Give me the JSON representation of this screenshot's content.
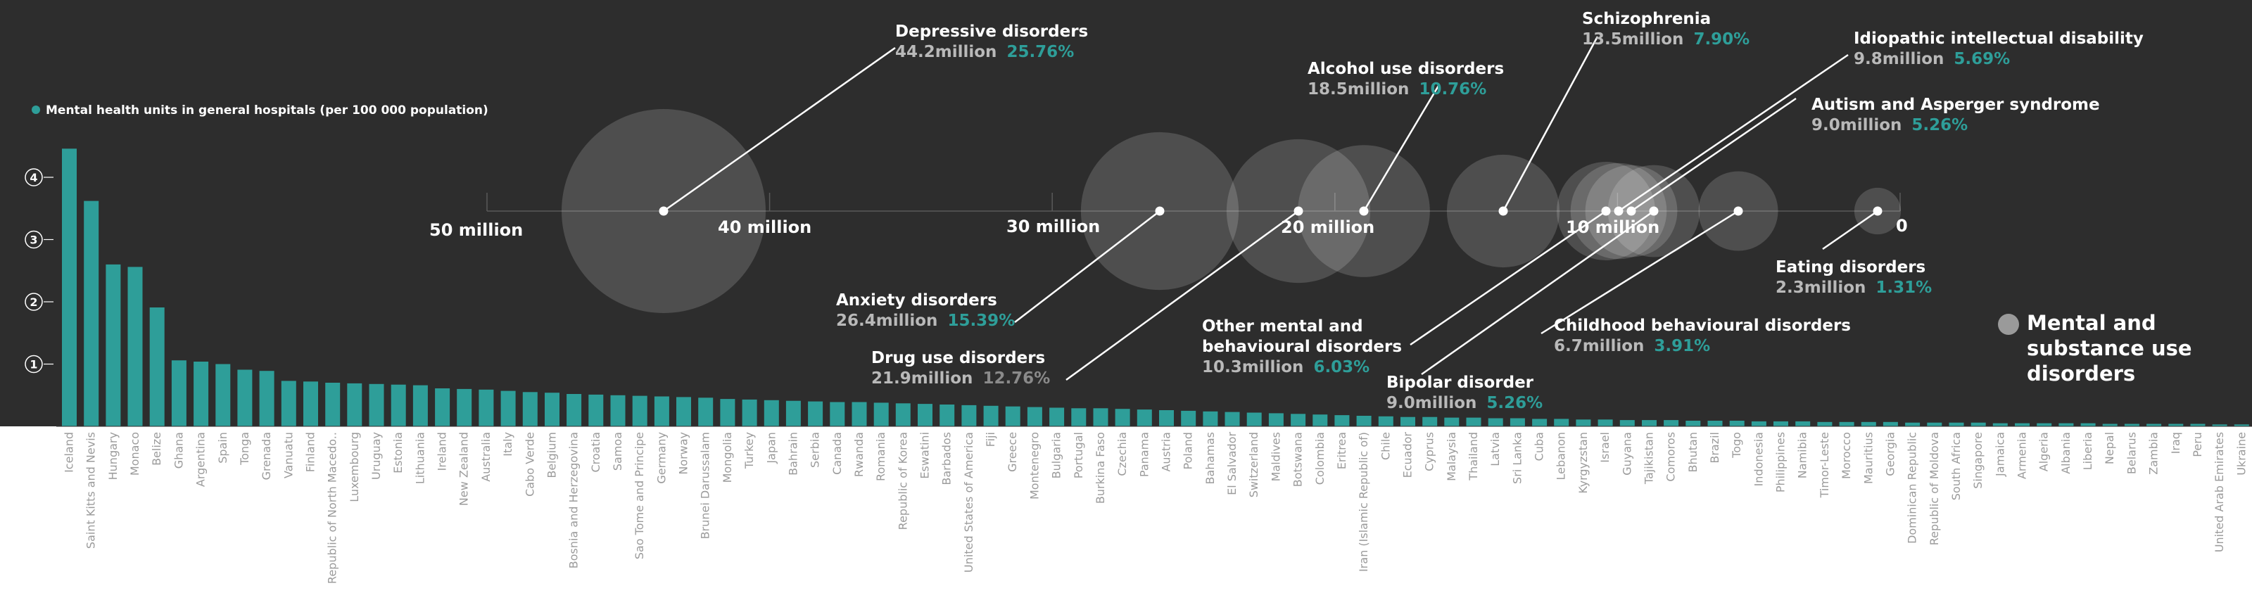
{
  "colors": {
    "panel": "#2d2d2d",
    "bar": "#2e9e99",
    "bubble": "#ffffff",
    "value_text": "#b9b9b9",
    "percent_text": "#2e9e99",
    "muted_percent_text": "#8a8a8a",
    "country_text": "#9b9b9b"
  },
  "chart_data": [
    {
      "type": "bar",
      "legend": "Mental health units in general hospitals (per 100 000 population)",
      "legend_marker": "teal-dot",
      "y_ticks": [
        "1",
        "2",
        "3",
        "4"
      ],
      "ylim": [
        0,
        4.6
      ],
      "grid": false,
      "categories": [
        "Iceland",
        "Saint Kitts and Nevis",
        "Hungary",
        "Monaco",
        "Belize",
        "Ghana",
        "Argentina",
        "Spain",
        "Tonga",
        "Grenada",
        "Vanuatu",
        "Finland",
        "Republic of North Macedo..",
        "Luxembourg",
        "Uruguay",
        "Estonia",
        "Lithuania",
        "Ireland",
        "New Zealand",
        "Australia",
        "Italy",
        "Cabo Verde",
        "Belgium",
        "Bosnia and Herzegovina",
        "Croatia",
        "Samoa",
        "Sao Tome and Principe",
        "Germany",
        "Norway",
        "Brunei Darussalam",
        "Mongolia",
        "Turkey",
        "Japan",
        "Bahrain",
        "Serbia",
        "Canada",
        "Rwanda",
        "Romania",
        "Republic of Korea",
        "Eswatini",
        "Barbados",
        "United States of America",
        "Fiji",
        "Greece",
        "Montenegro",
        "Bulgaria",
        "Portugal",
        "Burkina Faso",
        "Czechia",
        "Panama",
        "Austria",
        "Poland",
        "Bahamas",
        "El Salvador",
        "Switzerland",
        "Maldives",
        "Botswana",
        "Colombia",
        "Eritrea",
        "Iran (Islamic Republic of)",
        "Chile",
        "Ecuador",
        "Cyprus",
        "Malaysia",
        "Thailand",
        "Latvia",
        "Sri Lanka",
        "Cuba",
        "Lebanon",
        "Kyrgyzstan",
        "Israel",
        "Guyana",
        "Tajikistan",
        "Comoros",
        "Bhutan",
        "Brazil",
        "Togo",
        "Indonesia",
        "Philippines",
        "Namibia",
        "Timor-Leste",
        "Morocco",
        "Mauritius",
        "Georgia",
        "Dominican Republic",
        "Republic of Moldova",
        "South Africa",
        "Singapore",
        "Jamaica",
        "Armenia",
        "Algeria",
        "Albania",
        "Liberia",
        "Nepal",
        "Belarus",
        "Zambia",
        "Iraq",
        "Peru",
        "United Arab Emirates",
        "Ukraine"
      ],
      "values": [
        4.46,
        3.62,
        2.6,
        2.56,
        1.91,
        1.06,
        1.04,
        1.0,
        0.91,
        0.89,
        0.73,
        0.72,
        0.7,
        0.69,
        0.68,
        0.67,
        0.66,
        0.61,
        0.6,
        0.59,
        0.57,
        0.55,
        0.54,
        0.52,
        0.51,
        0.5,
        0.49,
        0.48,
        0.47,
        0.46,
        0.44,
        0.43,
        0.42,
        0.41,
        0.4,
        0.39,
        0.39,
        0.38,
        0.37,
        0.36,
        0.35,
        0.34,
        0.33,
        0.32,
        0.31,
        0.3,
        0.29,
        0.29,
        0.28,
        0.27,
        0.26,
        0.25,
        0.24,
        0.23,
        0.22,
        0.21,
        0.2,
        0.19,
        0.18,
        0.17,
        0.16,
        0.15,
        0.15,
        0.14,
        0.14,
        0.13,
        0.13,
        0.12,
        0.12,
        0.11,
        0.11,
        0.1,
        0.1,
        0.1,
        0.09,
        0.09,
        0.09,
        0.08,
        0.08,
        0.08,
        0.07,
        0.07,
        0.07,
        0.07,
        0.06,
        0.06,
        0.06,
        0.06,
        0.05,
        0.05,
        0.05,
        0.05,
        0.05,
        0.04,
        0.04,
        0.04,
        0.04,
        0.04,
        0.03,
        0.03
      ]
    },
    {
      "type": "scatter",
      "title": "Mental and substance use disorders",
      "axis_labels": [
        {
          "text": "50 million",
          "value": 50
        },
        {
          "text": "40 million",
          "value": 40
        },
        {
          "text": "30 million",
          "value": 30
        },
        {
          "text": "20 million",
          "value": 20
        },
        {
          "text": "10 million",
          "value": 10
        },
        {
          "text": "0",
          "value": 0
        }
      ],
      "xlim": [
        0,
        50
      ],
      "series": [
        {
          "name": "Depressive disorders",
          "value_millions": 44.2,
          "value_text": "44.2million",
          "percent": "25.76%"
        },
        {
          "name": "Anxiety disorders",
          "value_millions": 26.4,
          "value_text": "26.4million",
          "percent": "15.39%"
        },
        {
          "name": "Drug use disorders",
          "value_millions": 21.9,
          "value_text": "21.9million",
          "percent": "12.76%",
          "muted_percent": true
        },
        {
          "name": "Alcohol use disorders",
          "value_millions": 18.5,
          "value_text": "18.5million",
          "percent": "10.76%"
        },
        {
          "name": "Schizophrenia",
          "value_millions": 13.5,
          "value_text": "13.5million",
          "percent": "7.90%"
        },
        {
          "name": "Other mental and behavioural disorders",
          "lines": [
            "Other mental and",
            "behavioural disorders"
          ],
          "value_millions": 10.3,
          "value_text": "10.3million",
          "percent": "6.03%"
        },
        {
          "name": "Idiopathic intellectual disability",
          "value_millions": 9.8,
          "value_text": "9.8million",
          "percent": "5.69%"
        },
        {
          "name": "Autism and Asperger syndrome",
          "value_millions": 9.0,
          "value_text": "9.0million",
          "percent": "5.26%"
        },
        {
          "name": "Bipolar disorder",
          "value_millions": 9.0,
          "value_text": "9.0million",
          "percent": "5.26%"
        },
        {
          "name": "Childhood behavioural disorders",
          "value_millions": 6.7,
          "value_text": "6.7million",
          "percent": "3.91%"
        },
        {
          "name": "Eating disorders",
          "value_millions": 2.3,
          "value_text": "2.3million",
          "percent": "1.31%"
        }
      ],
      "legend": [
        "Mental and",
        "substance use",
        "disorders"
      ],
      "legend_marker": "grey-dot"
    }
  ]
}
